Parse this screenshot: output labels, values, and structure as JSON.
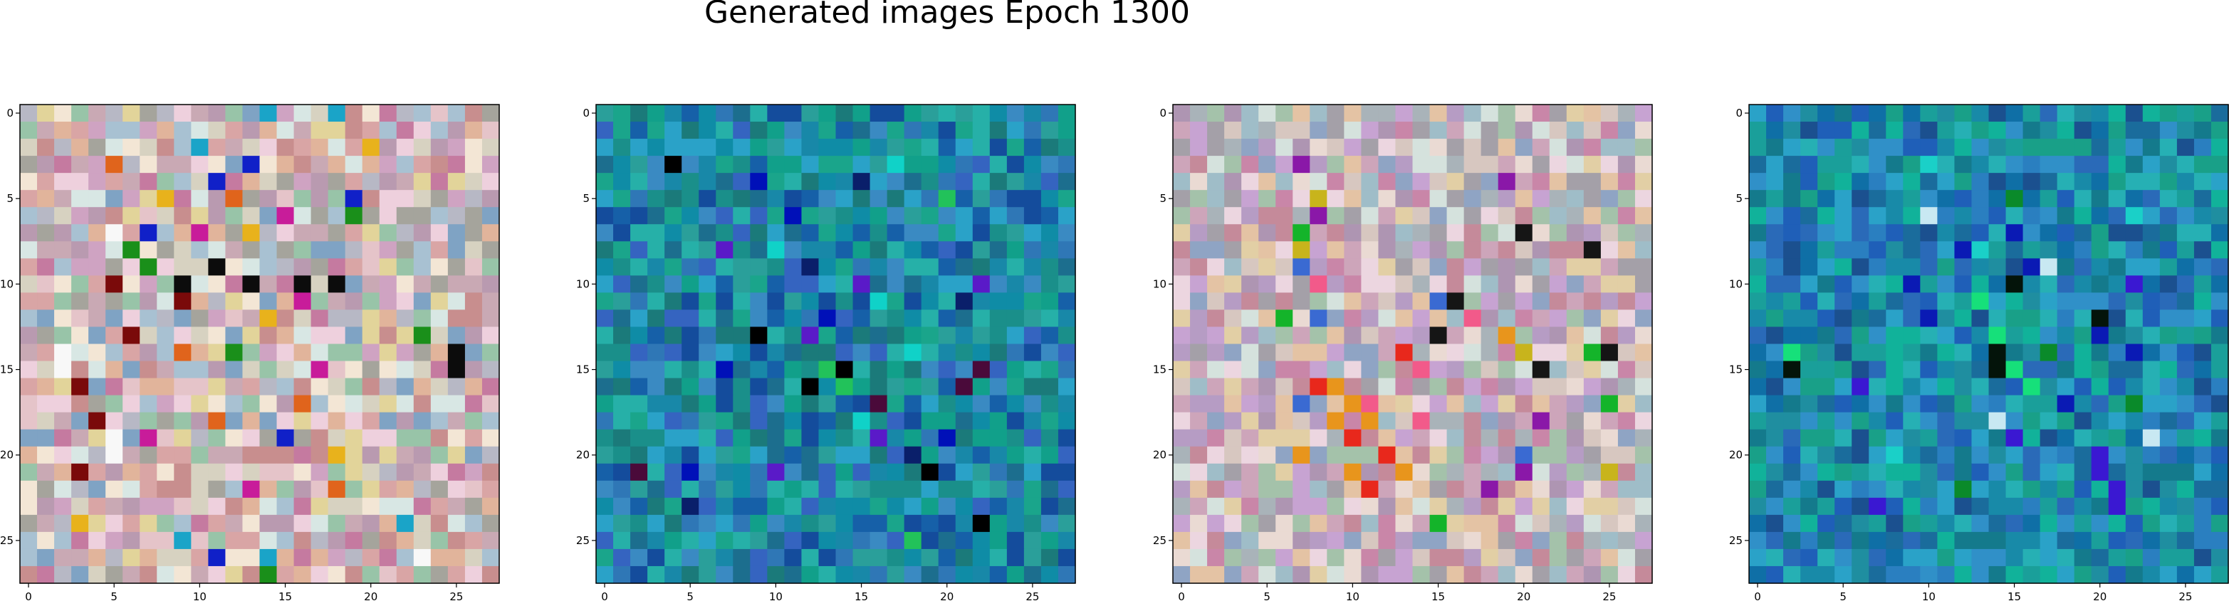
{
  "figure": {
    "title": "Generated images Epoch 1300"
  },
  "chart_data": [
    {
      "type": "heatmap",
      "panel": 1,
      "grid_size": [
        28,
        28
      ],
      "x_ticks": [
        0,
        5,
        10,
        15,
        20,
        25
      ],
      "y_ticks": [
        0,
        5,
        10,
        15,
        20,
        25
      ],
      "x_tick_labels": [
        "0",
        "5",
        "10",
        "15",
        "20",
        "25"
      ],
      "y_tick_labels": [
        "0",
        "5",
        "10",
        "15",
        "20",
        "25"
      ],
      "xlim": [
        -0.5,
        27.5
      ],
      "ylim": [
        27.5,
        -0.5
      ],
      "palette": [
        "#c9a9b4",
        "#e5c4c9",
        "#b7b8c5",
        "#d7d2c1",
        "#f3e6d5",
        "#a8c1d2",
        "#cfa3c2",
        "#e1b49b",
        "#b99ab0",
        "#d8e7e4",
        "#c88e8e",
        "#a5a49c",
        "#eed0dd",
        "#e2d49a",
        "#7fa3c4",
        "#98c4a8",
        "#c57aa0",
        "#d9a5a5"
      ],
      "accents": [
        {
          "cells": [
            [
              10,
              5
            ],
            [
              13,
              6
            ],
            [
              11,
              9
            ],
            [
              16,
              3
            ],
            [
              21,
              3
            ],
            [
              18,
              4
            ]
          ],
          "color": "#7a0a0a"
        },
        {
          "cells": [
            [
              8,
              6
            ],
            [
              9,
              7
            ],
            [
              14,
              12
            ],
            [
              6,
              19
            ],
            [
              13,
              23
            ],
            [
              27,
              14
            ]
          ],
          "color": "#1a8f1a"
        },
        {
          "cells": [
            [
              10,
              9
            ],
            [
              10,
              13
            ],
            [
              10,
              16
            ],
            [
              10,
              18
            ],
            [
              9,
              11
            ],
            [
              14,
              25
            ],
            [
              15,
              25
            ]
          ],
          "color": "#0c0c0c"
        },
        {
          "cells": [
            [
              5,
              8
            ],
            [
              7,
              13
            ],
            [
              12,
              14
            ],
            [
              20,
              18
            ],
            [
              24,
              3
            ],
            [
              2,
              20
            ]
          ],
          "color": "#e8b21c"
        },
        {
          "cells": [
            [
              4,
              11
            ],
            [
              7,
              7
            ],
            [
              3,
              13
            ],
            [
              5,
              19
            ],
            [
              19,
              15
            ],
            [
              26,
              11
            ]
          ],
          "color": "#1020c8"
        },
        {
          "cells": [
            [
              6,
              15
            ],
            [
              15,
              17
            ],
            [
              19,
              7
            ],
            [
              22,
              13
            ],
            [
              7,
              10
            ],
            [
              11,
              16
            ]
          ],
          "color": "#c81c9a"
        },
        {
          "cells": [
            [
              0,
              14
            ],
            [
              2,
              10
            ],
            [
              0,
              18
            ],
            [
              24,
              22
            ],
            [
              25,
              9
            ],
            [
              26,
              14
            ]
          ],
          "color": "#1aa4c8"
        },
        {
          "cells": [
            [
              5,
              12
            ],
            [
              14,
              9
            ],
            [
              17,
              16
            ],
            [
              18,
              11
            ],
            [
              22,
              18
            ],
            [
              3,
              5
            ]
          ],
          "color": "#e0641c"
        },
        {
          "cells": [
            [
              14,
              2
            ],
            [
              15,
              2
            ],
            [
              7,
              5
            ],
            [
              19,
              5
            ],
            [
              20,
              5
            ],
            [
              26,
              23
            ]
          ],
          "color": "#f8f8f8"
        }
      ]
    },
    {
      "type": "heatmap",
      "panel": 2,
      "grid_size": [
        28,
        28
      ],
      "x_ticks": [
        0,
        5,
        10,
        15,
        20,
        25
      ],
      "y_ticks": [
        0,
        5,
        10,
        15,
        20,
        25
      ],
      "x_tick_labels": [
        "0",
        "5",
        "10",
        "15",
        "20",
        "25"
      ],
      "y_tick_labels": [
        "0",
        "5",
        "10",
        "15",
        "20",
        "25"
      ],
      "xlim": [
        -0.5,
        27.5
      ],
      "ylim": [
        27.5,
        -0.5
      ],
      "palette": [
        "#1c6e8e",
        "#1a8f8a",
        "#2a9f9a",
        "#1660a8",
        "#2f77b6",
        "#1888a8",
        "#11a08a",
        "#3a8ac2",
        "#144c9c",
        "#26b0a8",
        "#2aa2c8",
        "#1b7a7a",
        "#3564c0",
        "#1aa58b",
        "#0f8ca6"
      ],
      "accents": [
        {
          "cells": [
            [
              13,
              9
            ],
            [
              15,
              14
            ],
            [
              16,
              12
            ],
            [
              24,
              22
            ],
            [
              21,
              19
            ],
            [
              3,
              4
            ]
          ],
          "color": "#000000"
        },
        {
          "cells": [
            [
              4,
              9
            ],
            [
              6,
              11
            ],
            [
              12,
              13
            ],
            [
              19,
              20
            ],
            [
              21,
              5
            ],
            [
              15,
              7
            ]
          ],
          "color": "#0010b8"
        },
        {
          "cells": [
            [
              10,
              15
            ],
            [
              13,
              12
            ],
            [
              19,
              16
            ],
            [
              21,
              10
            ],
            [
              10,
              22
            ],
            [
              8,
              7
            ]
          ],
          "color": "#5a1ac8"
        },
        {
          "cells": [
            [
              15,
              13
            ],
            [
              16,
              14
            ],
            [
              11,
              16
            ],
            [
              5,
              20
            ],
            [
              25,
              18
            ]
          ],
          "color": "#22c25a"
        },
        {
          "cells": [
            [
              11,
              16
            ],
            [
              14,
              18
            ],
            [
              18,
              15
            ],
            [
              8,
              10
            ],
            [
              3,
              17
            ]
          ],
          "color": "#10d2c8"
        },
        {
          "cells": [
            [
              4,
              15
            ],
            [
              20,
              18
            ],
            [
              9,
              12
            ],
            [
              11,
              21
            ],
            [
              23,
              5
            ]
          ],
          "color": "#0a1f6a"
        },
        {
          "cells": [
            [
              15,
              22
            ],
            [
              21,
              2
            ],
            [
              16,
              21
            ],
            [
              17,
              16
            ]
          ],
          "color": "#4a0a3a"
        }
      ]
    },
    {
      "type": "heatmap",
      "panel": 3,
      "grid_size": [
        28,
        28
      ],
      "x_ticks": [
        0,
        5,
        10,
        15,
        20,
        25
      ],
      "y_ticks": [
        0,
        5,
        10,
        15,
        20,
        25
      ],
      "x_tick_labels": [
        "0",
        "5",
        "10",
        "15",
        "20",
        "25"
      ],
      "y_tick_labels": [
        "0",
        "5",
        "10",
        "15",
        "20",
        "25"
      ],
      "xlim": [
        -0.5,
        27.5
      ],
      "ylim": [
        27.5,
        -0.5
      ],
      "palette": [
        "#b69cc4",
        "#cda5ba",
        "#9fbdc8",
        "#d7c7c0",
        "#eadad3",
        "#a9b3b9",
        "#c7a3d2",
        "#e4c3a4",
        "#ae95b2",
        "#d5e2dd",
        "#c58a9a",
        "#a4a0a8",
        "#ecd6e0",
        "#e2cfa5",
        "#8fa4c4",
        "#a4c2aa",
        "#c986a8"
      ],
      "accents": [
        {
          "cells": [
            [
              16,
              9
            ],
            [
              17,
              10
            ],
            [
              18,
              9
            ],
            [
              21,
              10
            ],
            [
              20,
              7
            ],
            [
              18,
              11
            ],
            [
              21,
              13
            ],
            [
              13,
              19
            ]
          ],
          "color": "#e8951c"
        },
        {
          "cells": [
            [
              19,
              10
            ],
            [
              22,
              11
            ],
            [
              20,
              12
            ],
            [
              14,
              13
            ],
            [
              16,
              8
            ]
          ],
          "color": "#e8281c"
        },
        {
          "cells": [
            [
              17,
              11
            ],
            [
              15,
              14
            ],
            [
              12,
              17
            ],
            [
              18,
              14
            ],
            [
              10,
              8
            ]
          ],
          "color": "#f25a8a"
        },
        {
          "cells": [
            [
              8,
              24
            ],
            [
              7,
              20
            ],
            [
              13,
              15
            ],
            [
              11,
              16
            ],
            [
              15,
              21
            ],
            [
              14,
              25
            ]
          ],
          "color": "#151515"
        },
        {
          "cells": [
            [
              9,
              7
            ],
            [
              12,
              8
            ],
            [
              17,
              7
            ],
            [
              11,
              15
            ],
            [
              20,
              20
            ]
          ],
          "color": "#3a6ad2"
        },
        {
          "cells": [
            [
              3,
              7
            ],
            [
              6,
              8
            ],
            [
              4,
              19
            ],
            [
              21,
              20
            ],
            [
              22,
              18
            ],
            [
              18,
              21
            ]
          ],
          "color": "#8a18a8"
        },
        {
          "cells": [
            [
              7,
              7
            ],
            [
              12,
              6
            ],
            [
              17,
              25
            ],
            [
              24,
              15
            ],
            [
              14,
              24
            ]
          ],
          "color": "#14b42a"
        },
        {
          "cells": [
            [
              5,
              8
            ],
            [
              8,
              7
            ],
            [
              14,
              20
            ],
            [
              21,
              25
            ]
          ],
          "color": "#c8b41c"
        }
      ]
    },
    {
      "type": "heatmap",
      "panel": 4,
      "grid_size": [
        28,
        28
      ],
      "x_ticks": [
        0,
        5,
        10,
        15,
        20,
        25
      ],
      "y_ticks": [
        0,
        5,
        10,
        15,
        20,
        25
      ],
      "x_tick_labels": [
        "0",
        "5",
        "10",
        "15",
        "20",
        "25"
      ],
      "y_tick_labels": [
        "0",
        "5",
        "10",
        "15",
        "20",
        "25"
      ],
      "xlim": [
        -0.5,
        27.5
      ],
      "ylim": [
        27.5,
        -0.5
      ],
      "palette": [
        "#1a6c9c",
        "#1f8ea0",
        "#188aa8",
        "#2a7fc0",
        "#1a9f9a",
        "#1f5fb8",
        "#26b0b4",
        "#147a8c",
        "#2a6ab8",
        "#19a088",
        "#3090c8",
        "#1b508f",
        "#11b29a",
        "#2aa2c8",
        "#0f6fa6"
      ],
      "accents": [
        {
          "cells": [
            [
              14,
              14
            ],
            [
              15,
              14
            ],
            [
              12,
              20
            ],
            [
              10,
              15
            ],
            [
              15,
              2
            ]
          ],
          "color": "#04140a"
        },
        {
          "cells": [
            [
              13,
              14
            ],
            [
              15,
              15
            ],
            [
              16,
              16
            ],
            [
              11,
              13
            ],
            [
              14,
              2
            ]
          ],
          "color": "#16e07a"
        },
        {
          "cells": [
            [
              19,
              15
            ],
            [
              20,
              20
            ],
            [
              21,
              20
            ],
            [
              22,
              21
            ],
            [
              23,
              21
            ],
            [
              18,
              14
            ],
            [
              16,
              6
            ],
            [
              10,
              22
            ],
            [
              23,
              7
            ]
          ],
          "color": "#3a18d2"
        },
        {
          "cells": [
            [
              10,
              9
            ],
            [
              12,
              10
            ],
            [
              8,
              12
            ],
            [
              13,
              20
            ],
            [
              17,
              18
            ],
            [
              14,
              22
            ],
            [
              7,
              15
            ],
            [
              9,
              16
            ]
          ],
          "color": "#0a1ab4"
        },
        {
          "cells": [
            [
              18,
              14
            ],
            [
              9,
              17
            ],
            [
              19,
              23
            ],
            [
              6,
              10
            ]
          ],
          "color": "#c8e8f2"
        },
        {
          "cells": [
            [
              5,
              15
            ],
            [
              14,
              17
            ],
            [
              17,
              22
            ],
            [
              22,
              12
            ]
          ],
          "color": "#0a8a2a"
        },
        {
          "cells": [
            [
              3,
              10
            ],
            [
              8,
              13
            ],
            [
              20,
              8
            ],
            [
              6,
              22
            ]
          ],
          "color": "#1ad0c8"
        }
      ]
    }
  ]
}
